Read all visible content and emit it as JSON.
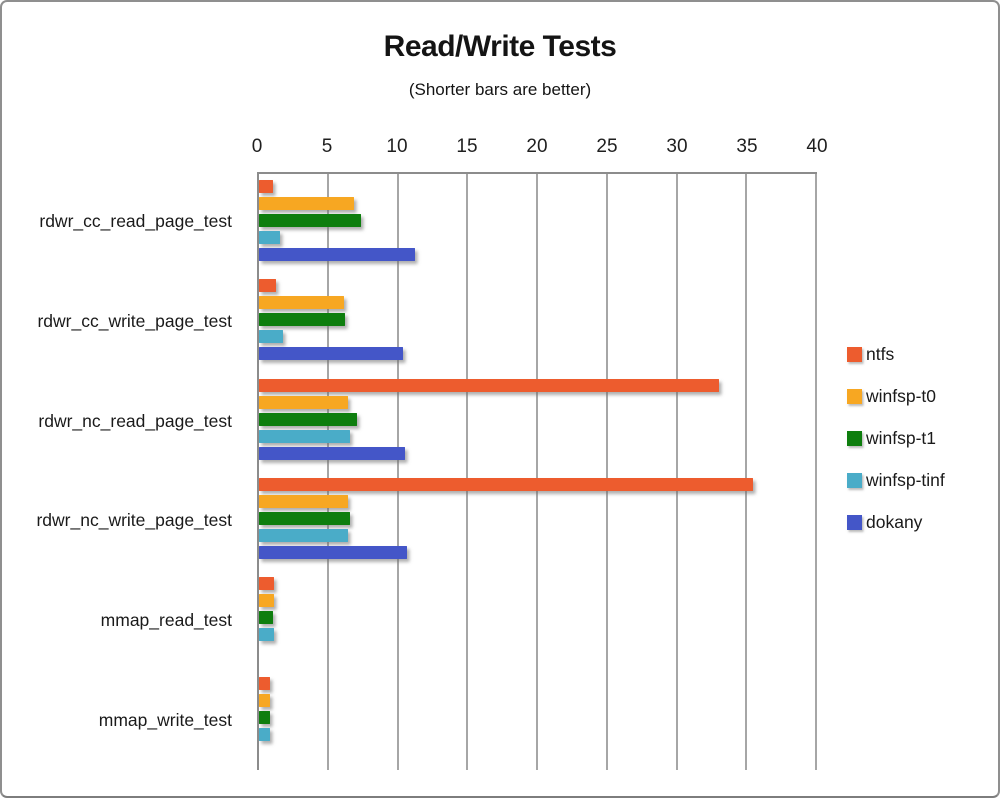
{
  "frame": {
    "background": "#FFFFFF",
    "border_color": "#8C8C8C"
  },
  "chart_data": {
    "type": "bar",
    "orientation": "horizontal",
    "title": "Read/Write Tests",
    "subtitle": "(Shorter bars are better)",
    "axis_position": "top",
    "legend_position": "right",
    "grid": true,
    "gridline_color": "#A6A6A6",
    "axis_line_color": "#8C8C8C",
    "xlim": [
      0,
      40
    ],
    "xticks": [
      0,
      5,
      10,
      15,
      20,
      25,
      30,
      35,
      40
    ],
    "categories": [
      "rdwr_cc_read_page_test",
      "rdwr_cc_write_page_test",
      "rdwr_nc_read_page_test",
      "rdwr_nc_write_page_test",
      "mmap_read_test",
      "mmap_write_test"
    ],
    "series": [
      {
        "name": "ntfs",
        "color": "#ED5C2E",
        "values": [
          1.0,
          1.2,
          33.0,
          35.4,
          1.1,
          0.8
        ]
      },
      {
        "name": "winfsp-t0",
        "color": "#F7A722",
        "values": [
          6.8,
          6.1,
          6.4,
          6.4,
          1.1,
          0.8
        ]
      },
      {
        "name": "winfsp-t1",
        "color": "#0E7E0E",
        "values": [
          7.3,
          6.2,
          7.0,
          6.5,
          1.0,
          0.8
        ]
      },
      {
        "name": "winfsp-tinf",
        "color": "#4AACC8",
        "values": [
          1.5,
          1.7,
          6.5,
          6.4,
          1.1,
          0.8
        ]
      },
      {
        "name": "dokany",
        "color": "#4456C8",
        "values": [
          11.2,
          10.3,
          10.5,
          10.6,
          0,
          0
        ]
      }
    ]
  }
}
